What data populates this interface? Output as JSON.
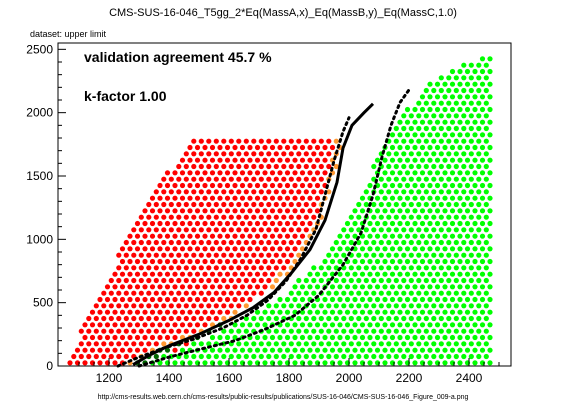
{
  "chart_data": {
    "type": "scatter",
    "title": "CMS-SUS-16-046_T5gg_2*Eq(MassA,x)_Eq(MassB,y)_Eq(MassC,1.0)",
    "subtitle": "dataset: upper limit",
    "footer": "http://cms-results.web.cern.ch/cms-results/public-results/publications/SUS-16-046/CMS-SUS-16-046_Figure_009-a.png",
    "annotations": [
      "validation agreement 45.7 %",
      "k-factor 1.00"
    ],
    "xlim": [
      1030,
      2540
    ],
    "ylim": [
      0,
      2550
    ],
    "xticks": [
      1200,
      1400,
      1600,
      1800,
      2000,
      2200,
      2400
    ],
    "yticks": [
      0,
      500,
      1000,
      1500,
      2000,
      2500
    ],
    "grid": false,
    "colors": {
      "excluded": "#ff0000",
      "allowed": "#00ff00",
      "excluded_disagree": "#ff9933",
      "allowed_disagree": "#006600",
      "curves": "#000000"
    },
    "point_grid": {
      "x_start": 1070,
      "x_step": 25,
      "y_start": 25,
      "y_step": 50
    },
    "curves": [
      {
        "style": "solid",
        "points": [
          [
            1280,
            10
          ],
          [
            1330,
            80
          ],
          [
            1400,
            160
          ],
          [
            1500,
            250
          ],
          [
            1600,
            360
          ],
          [
            1680,
            460
          ],
          [
            1750,
            580
          ],
          [
            1810,
            740
          ],
          [
            1870,
            920
          ],
          [
            1920,
            1150
          ],
          [
            1960,
            1450
          ],
          [
            1980,
            1720
          ],
          [
            2010,
            1900
          ],
          [
            2050,
            2000
          ],
          [
            2080,
            2070
          ]
        ]
      },
      {
        "style": "dotted",
        "points": [
          [
            1230,
            0
          ],
          [
            1290,
            60
          ],
          [
            1380,
            140
          ],
          [
            1480,
            210
          ],
          [
            1580,
            300
          ],
          [
            1660,
            400
          ],
          [
            1730,
            520
          ],
          [
            1790,
            670
          ],
          [
            1840,
            850
          ],
          [
            1890,
            1080
          ],
          [
            1920,
            1350
          ],
          [
            1950,
            1620
          ],
          [
            1980,
            1850
          ],
          [
            2000,
            1960
          ]
        ]
      },
      {
        "style": "dotted",
        "points": [
          [
            1300,
            0
          ],
          [
            1400,
            70
          ],
          [
            1500,
            130
          ],
          [
            1620,
            200
          ],
          [
            1720,
            290
          ],
          [
            1820,
            400
          ],
          [
            1900,
            560
          ],
          [
            1980,
            800
          ],
          [
            2040,
            1050
          ],
          [
            2080,
            1350
          ],
          [
            2110,
            1650
          ],
          [
            2140,
            1900
          ],
          [
            2170,
            2080
          ],
          [
            2200,
            2180
          ]
        ]
      }
    ],
    "regions": {
      "excluded_left_edge": [
        [
          1050,
          0
        ],
        [
          1330,
          1350
        ],
        [
          1460,
          1720
        ],
        [
          1480,
          1780
        ]
      ],
      "excluded_right_edge": [
        [
          1320,
          0
        ],
        [
          1600,
          350
        ],
        [
          1800,
          720
        ],
        [
          1900,
          1100
        ],
        [
          1950,
          1500
        ],
        [
          2000,
          1950
        ],
        [
          2010,
          2050
        ]
      ],
      "allowed_left_edge": [
        [
          1300,
          0
        ],
        [
          1600,
          300
        ],
        [
          1800,
          600
        ],
        [
          1950,
          950
        ],
        [
          2050,
          1400
        ],
        [
          2120,
          1800
        ],
        [
          2180,
          2000
        ],
        [
          2300,
          2300
        ],
        [
          2450,
          2450
        ]
      ],
      "allowed_right_x": 2480,
      "band_half_width": 35
    }
  }
}
